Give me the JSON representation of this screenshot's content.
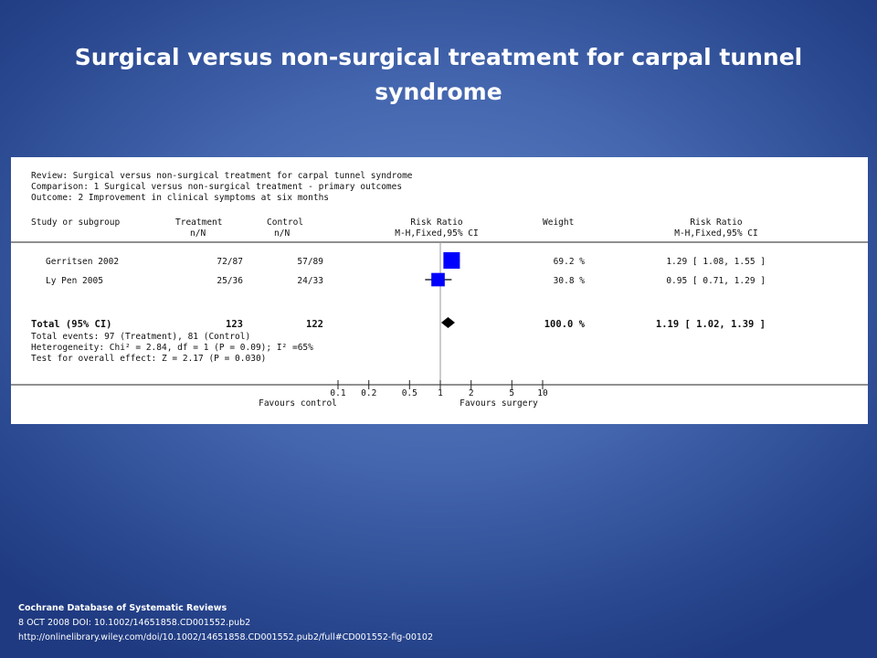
{
  "title": "Surgical versus non-surgical treatment for carpal tunnel syndrome",
  "header": {
    "review": "Review:  Surgical versus non-surgical treatment for carpal tunnel syndrome",
    "comparison": "Comparison:  1 Surgical versus non-surgical treatment - primary outcomes",
    "outcome": "Outcome:  2 Improvement in clinical symptoms at six months"
  },
  "columns": {
    "study": "Study or subgroup",
    "treatment": "Treatment",
    "treatment_sub": "n/N",
    "control": "Control",
    "control_sub": "n/N",
    "rr": "Risk Ratio",
    "rr_sub": "M-H,Fixed,95% CI",
    "weight": "Weight",
    "rr2": "Risk Ratio",
    "rr2_sub": "M-H,Fixed,95% CI"
  },
  "summary": {
    "label": "Total (95% CI)",
    "treatment": "123",
    "control": "122",
    "weight": "100.0 %",
    "ci_text": "1.19 [ 1.02, 1.39 ]",
    "events": "Total events: 97 (Treatment), 81 (Control)",
    "heterogeneity": "Heterogeneity: Chi² = 2.84, df = 1 (P = 0.09); I² =65%",
    "overall": "Test for overall effect: Z = 2.17 (P = 0.030)"
  },
  "axis": {
    "favours_left": "Favours control",
    "favours_right": "Favours surgery"
  },
  "footer": {
    "source": "Cochrane Database of Systematic Reviews",
    "date_doi": "8 OCT 2008 DOI: 10.1002/14651858.CD001552.pub2",
    "url": "http://onlinelibrary.wiley.com/doi/10.1002/14651858.CD001552.pub2/full#CD001552-fig-00102"
  },
  "chart_data": {
    "type": "forest",
    "scale": "log",
    "xlim": [
      0.1,
      10
    ],
    "ticks": [
      0.1,
      0.2,
      0.5,
      1,
      2,
      5,
      10
    ],
    "tick_labels": [
      "0.1",
      "0.2",
      "0.5",
      "1",
      "2",
      "5",
      "10"
    ],
    "reference_line": 1,
    "marker_color": "#0000ff",
    "studies": [
      {
        "name": "Gerritsen 2002",
        "treatment": "72/87",
        "control": "57/89",
        "rr": 1.29,
        "lower": 1.08,
        "upper": 1.55,
        "weight": 69.2,
        "weight_text": "69.2 %",
        "ci_text": "1.29 [ 1.08, 1.55 ]"
      },
      {
        "name": "Ly Pen 2005",
        "treatment": "25/36",
        "control": "24/33",
        "rr": 0.95,
        "lower": 0.71,
        "upper": 1.29,
        "weight": 30.8,
        "weight_text": "30.8 %",
        "ci_text": "0.95 [ 0.71, 1.29 ]"
      }
    ],
    "pooled": {
      "rr": 1.19,
      "lower": 1.02,
      "upper": 1.39
    }
  }
}
